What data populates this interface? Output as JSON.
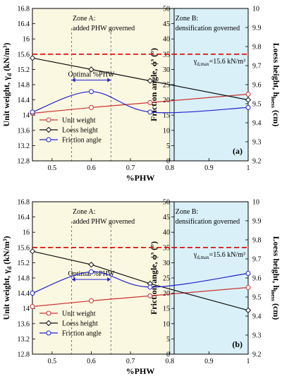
{
  "colors": {
    "unit_weight": "#cc3333",
    "loess_height": "#111111",
    "friction_angle": "#2222cc",
    "max_line": "#dd0000",
    "zone_a_fill": "#fbf8e2",
    "zone_b_fill": "#d9f0f9",
    "optimal_arrow": "#2222cc"
  },
  "chart_data": [
    {
      "type": "line",
      "panel_label": "(a)",
      "xlabel": "%PHW",
      "xlim": [
        0.45,
        1.0
      ],
      "x_ticks": [
        "0.5",
        "0.6",
        "0.7",
        "0.8",
        "0.9",
        "1"
      ],
      "y_left": {
        "label": "Unit weight, γ",
        "sub": "d",
        "unit": " (kN/m³)",
        "lim": [
          12.8,
          16.8
        ],
        "ticks": [
          "12.8",
          "13.2",
          "13.6",
          "14",
          "14.4",
          "14.8",
          "15.2",
          "15.6",
          "16",
          "16.4",
          "16.8"
        ]
      },
      "y_mid": {
        "label": "Friction angle, ϕ",
        "sup": "s",
        "unit": " (°)",
        "lim": [
          0,
          50
        ],
        "ticks": [
          "0",
          "5",
          "10",
          "15",
          "20",
          "25",
          "30",
          "35",
          "40",
          "45",
          "50"
        ]
      },
      "y_right": {
        "label": "Loess height, h",
        "sub": "loess",
        "unit": " (cm)",
        "lim": [
          9.2,
          10.0
        ],
        "ticks": [
          "9.2",
          "9.3",
          "9.4",
          "9.5",
          "9.6",
          "9.7",
          "9.8",
          "9.9",
          "10"
        ]
      },
      "zone_a": {
        "text1": "Zone A:",
        "text2": "added PHW governed",
        "range": [
          0.45,
          0.8
        ]
      },
      "zone_b": {
        "text1": "Zone B:",
        "text2": "densification governed",
        "range": [
          0.8,
          1.0
        ]
      },
      "optimal": {
        "label": "Optimal %PHW",
        "range": [
          0.55,
          0.65
        ],
        "y_mid": 26.5
      },
      "max_line": {
        "y": 15.6,
        "label_main": "γ",
        "label_sub": "d,max",
        "label_rest": "=15.6 kN/m³"
      },
      "legend": [
        "Unit weight",
        "Loess height",
        "Friction angle"
      ],
      "series": [
        {
          "name": "Unit weight",
          "axis": "left",
          "x": [
            0.45,
            0.6,
            0.75,
            1.0
          ],
          "y": [
            14.05,
            14.2,
            14.33,
            14.55
          ]
        },
        {
          "name": "Loess height",
          "axis": "right",
          "x": [
            0.45,
            0.6,
            0.75,
            1.0
          ],
          "y": [
            9.74,
            9.68,
            9.62,
            9.52
          ]
        },
        {
          "name": "Friction angle",
          "axis": "mid",
          "x": [
            0.45,
            0.6,
            0.75,
            1.0
          ],
          "y": [
            16.0,
            22.7,
            16.0,
            17.5
          ]
        }
      ]
    },
    {
      "type": "line",
      "panel_label": "(b)",
      "xlabel": "%PHW",
      "xlim": [
        0.45,
        1.0
      ],
      "x_ticks": [
        "0.5",
        "0.6",
        "0.7",
        "0.8",
        "0.9",
        "1"
      ],
      "y_left": {
        "label": "Unit weight, γ",
        "sub": "d",
        "unit": " (kN/m³)",
        "lim": [
          12.8,
          16.8
        ],
        "ticks": [
          "12.8",
          "13.2",
          "13.6",
          "14",
          "14.4",
          "14.8",
          "15.2",
          "15.6",
          "16",
          "16.4",
          "16.8"
        ]
      },
      "y_mid": {
        "label": "Friction angle, ϕ",
        "sup": "s",
        "unit": " (°)",
        "lim": [
          0,
          50
        ],
        "ticks": [
          "0",
          "5",
          "10",
          "15",
          "20",
          "25",
          "30",
          "35",
          "40",
          "45",
          "50"
        ]
      },
      "y_right": {
        "label": "Loess height, h",
        "sub": "loess",
        "unit": " (cm)",
        "lim": [
          9.2,
          10.0
        ],
        "ticks": [
          "9.2",
          "9.3",
          "9.4",
          "9.5",
          "9.6",
          "9.7",
          "9.8",
          "9.9",
          "10"
        ]
      },
      "zone_a": {
        "text1": "Zone A:",
        "text2": "added PHW governed",
        "range": [
          0.45,
          0.8
        ]
      },
      "zone_b": {
        "text1": "Zone B:",
        "text2": "densification governed",
        "range": [
          0.8,
          1.0
        ]
      },
      "optimal": {
        "label": "Optimal %PHW",
        "range": [
          0.55,
          0.65
        ],
        "y_mid": 24.5
      },
      "max_line": {
        "y": 15.6,
        "label_main": "γ",
        "label_sub": "d,max",
        "label_rest": "=15.6 kN/m³"
      },
      "legend": [
        "Unit weight",
        "Loess height",
        "Friction angle"
      ],
      "series": [
        {
          "name": "Unit weight",
          "axis": "left",
          "x": [
            0.45,
            0.6,
            0.75,
            1.0
          ],
          "y": [
            14.05,
            14.2,
            14.33,
            14.55
          ]
        },
        {
          "name": "Loess height",
          "axis": "right",
          "x": [
            0.45,
            0.6,
            0.75,
            1.0
          ],
          "y": [
            9.74,
            9.67,
            9.57,
            9.43
          ]
        },
        {
          "name": "Friction angle",
          "axis": "mid",
          "x": [
            0.45,
            0.6,
            0.75,
            1.0
          ],
          "y": [
            20.0,
            27.0,
            22.0,
            26.5
          ]
        }
      ]
    }
  ]
}
